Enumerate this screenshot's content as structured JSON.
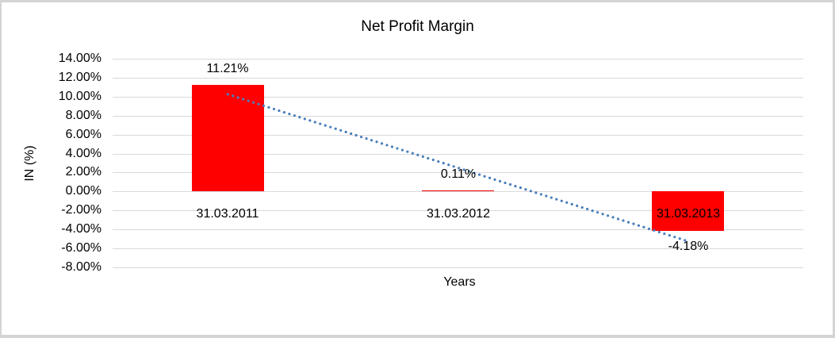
{
  "chart_data": {
    "type": "bar",
    "title": "Net Profit Margin",
    "xlabel": "Years",
    "ylabel": "IN (%)",
    "categories": [
      "31.03.2011",
      "31.03.2012",
      "31.03.2013"
    ],
    "series": [
      {
        "name": "Net Profit Margin",
        "values": [
          11.21,
          0.11,
          -4.18
        ]
      }
    ],
    "data_labels": [
      "11.21%",
      "0.11%",
      "-4.18%"
    ],
    "ylim": [
      -8,
      14
    ],
    "ytick_step": 2,
    "ytick_labels": [
      "14.00%",
      "12.00%",
      "10.00%",
      "8.00%",
      "6.00%",
      "4.00%",
      "2.00%",
      "0.00%",
      "-2.00%",
      "-4.00%",
      "-6.00%",
      "-8.00%"
    ],
    "grid": true,
    "legend": "none",
    "bar_color": "#FF0000",
    "gridline_color": "#D9D9D9",
    "text_color": "#000000",
    "background_color": "#FFFFFF",
    "frame_color": "#D4D4D4",
    "trendline": {
      "type": "linear",
      "style": "dotted",
      "color": "#4A7EBB",
      "start_value": 10.25,
      "end_value": -5.25
    }
  }
}
